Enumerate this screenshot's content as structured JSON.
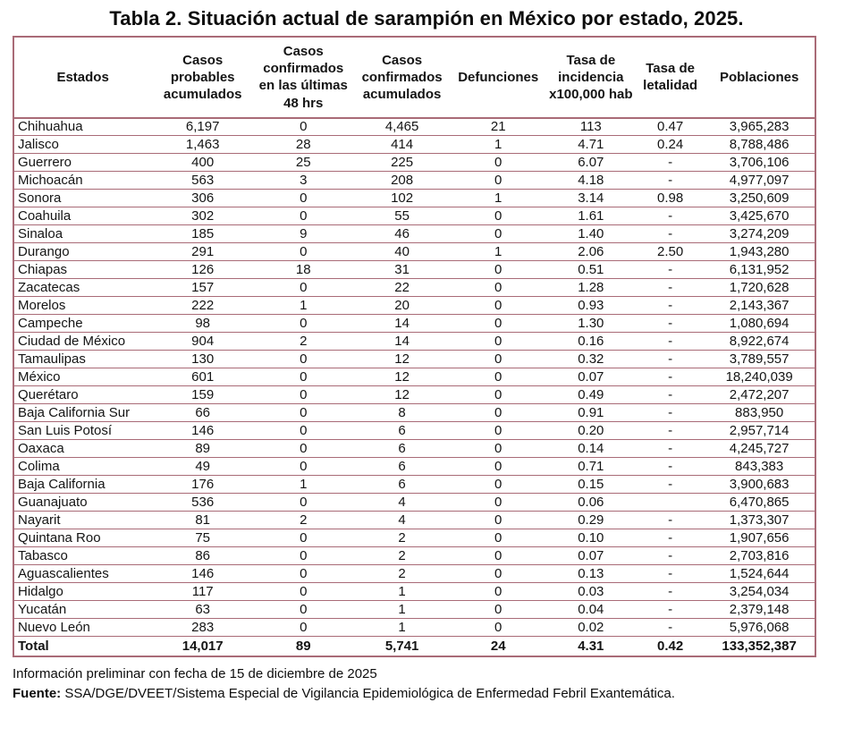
{
  "title": "Tabla 2. Situación actual de sarampión en México por estado, 2025.",
  "table": {
    "columns": [
      "Estados",
      "Casos probables acumulados",
      "Casos confirmados en las últimas 48 hrs",
      "Casos confirmados acumulados",
      "Defunciones",
      "Tasa de incidencia x100,000 hab",
      "Tasa de letalidad",
      "Poblaciones"
    ],
    "rows": [
      [
        "Chihuahua",
        "6,197",
        "0",
        "4,465",
        "21",
        "113",
        "0.47",
        "3,965,283"
      ],
      [
        "Jalisco",
        "1,463",
        "28",
        "414",
        "1",
        "4.71",
        "0.24",
        "8,788,486"
      ],
      [
        "Guerrero",
        "400",
        "25",
        "225",
        "0",
        "6.07",
        "-",
        "3,706,106"
      ],
      [
        "Michoacán",
        "563",
        "3",
        "208",
        "0",
        "4.18",
        "-",
        "4,977,097"
      ],
      [
        "Sonora",
        "306",
        "0",
        "102",
        "1",
        "3.14",
        "0.98",
        "3,250,609"
      ],
      [
        "Coahuila",
        "302",
        "0",
        "55",
        "0",
        "1.61",
        "-",
        "3,425,670"
      ],
      [
        "Sinaloa",
        "185",
        "9",
        "46",
        "0",
        "1.40",
        "-",
        "3,274,209"
      ],
      [
        "Durango",
        "291",
        "0",
        "40",
        "1",
        "2.06",
        "2.50",
        "1,943,280"
      ],
      [
        "Chiapas",
        "126",
        "18",
        "31",
        "0",
        "0.51",
        "-",
        "6,131,952"
      ],
      [
        "Zacatecas",
        "157",
        "0",
        "22",
        "0",
        "1.28",
        "-",
        "1,720,628"
      ],
      [
        "Morelos",
        "222",
        "1",
        "20",
        "0",
        "0.93",
        "-",
        "2,143,367"
      ],
      [
        "Campeche",
        "98",
        "0",
        "14",
        "0",
        "1.30",
        "-",
        "1,080,694"
      ],
      [
        "Ciudad de México",
        "904",
        "2",
        "14",
        "0",
        "0.16",
        "-",
        "8,922,674"
      ],
      [
        "Tamaulipas",
        "130",
        "0",
        "12",
        "0",
        "0.32",
        "-",
        "3,789,557"
      ],
      [
        "México",
        "601",
        "0",
        "12",
        "0",
        "0.07",
        "-",
        "18,240,039"
      ],
      [
        "Querétaro",
        "159",
        "0",
        "12",
        "0",
        "0.49",
        "-",
        "2,472,207"
      ],
      [
        "Baja California Sur",
        "66",
        "0",
        "8",
        "0",
        "0.91",
        "-",
        "883,950"
      ],
      [
        "San Luis Potosí",
        "146",
        "0",
        "6",
        "0",
        "0.20",
        "-",
        "2,957,714"
      ],
      [
        "Oaxaca",
        "89",
        "0",
        "6",
        "0",
        "0.14",
        "-",
        "4,245,727"
      ],
      [
        "Colima",
        "49",
        "0",
        "6",
        "0",
        "0.71",
        "-",
        "843,383"
      ],
      [
        "Baja California",
        "176",
        "1",
        "6",
        "0",
        "0.15",
        "-",
        "3,900,683"
      ],
      [
        "Guanajuato",
        "536",
        "0",
        "4",
        "0",
        "0.06",
        "",
        "6,470,865"
      ],
      [
        "Nayarit",
        "81",
        "2",
        "4",
        "0",
        "0.29",
        "-",
        "1,373,307"
      ],
      [
        "Quintana Roo",
        "75",
        "0",
        "2",
        "0",
        "0.10",
        "-",
        "1,907,656"
      ],
      [
        "Tabasco",
        "86",
        "0",
        "2",
        "0",
        "0.07",
        "-",
        "2,703,816"
      ],
      [
        "Aguascalientes",
        "146",
        "0",
        "2",
        "0",
        "0.13",
        "-",
        "1,524,644"
      ],
      [
        "Hidalgo",
        "117",
        "0",
        "1",
        "0",
        "0.03",
        "-",
        "3,254,034"
      ],
      [
        "Yucatán",
        "63",
        "0",
        "1",
        "0",
        "0.04",
        "-",
        "2,379,148"
      ],
      [
        "Nuevo León",
        "283",
        "0",
        "1",
        "0",
        "0.02",
        "-",
        "5,976,068"
      ]
    ],
    "total_row": [
      "Total",
      "14,017",
      "89",
      "5,741",
      "24",
      "4.31",
      "0.42",
      "133,352,387"
    ]
  },
  "footer": {
    "note": "Información preliminar con fecha de 15 de diciembre de 2025",
    "source_label": "Fuente:",
    "source_text": " SSA/DGE/DVEET/Sistema Especial de Vigilancia Epidemiológica de Enfermedad Febril Exantemática."
  },
  "colors": {
    "table_border": "#a96b77",
    "text": "#141414",
    "background": "#ffffff"
  }
}
